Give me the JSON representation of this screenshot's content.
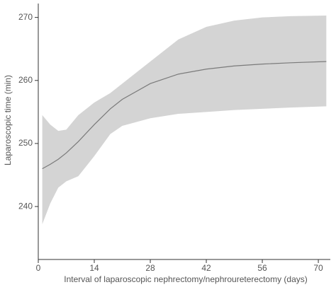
{
  "chart_data": {
    "type": "line",
    "x_label": "Interval of laparoscopic nephrectomy/nephroureterectomy (days)",
    "y_label": "Laparoscopic time (min)",
    "x": [
      1,
      3,
      5,
      7,
      10,
      14,
      18,
      21,
      28,
      35,
      42,
      49,
      56,
      63,
      72
    ],
    "values": [
      246,
      246.7,
      247.5,
      248.5,
      250.3,
      253,
      255.5,
      257,
      259.5,
      261,
      261.8,
      262.3,
      262.6,
      262.8,
      263
    ],
    "upper": [
      254.5,
      253,
      252,
      252.2,
      254.5,
      256.5,
      258,
      259.5,
      263,
      266.5,
      268.5,
      269.5,
      270,
      270.2,
      270.3
    ],
    "lower": [
      237.2,
      240.5,
      243,
      244,
      244.8,
      248,
      251.5,
      252.8,
      254,
      254.7,
      255,
      255.3,
      255.5,
      255.7,
      255.9
    ],
    "color": "#7a7a7a",
    "band_color": "#d4d4d4",
    "xlim": [
      0,
      73
    ],
    "ylim": [
      231.6,
      272.2
    ],
    "xticks": [
      0,
      14,
      28,
      42,
      56,
      70
    ],
    "yticks": [
      240,
      250,
      260,
      270
    ],
    "grid": false
  }
}
